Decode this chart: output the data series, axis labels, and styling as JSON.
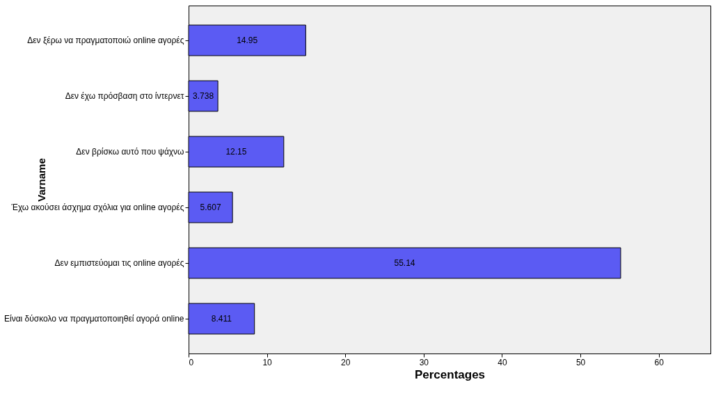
{
  "chart_data": {
    "type": "bar",
    "orientation": "horizontal",
    "xlabel": "Percentages",
    "ylabel": "Varname",
    "categories": [
      "Δεν ξέρω να πραγματοποιώ online αγορές",
      "Δεν έχω πρόσβαση στο ίντερνετ",
      "Δεν βρίσκω αυτό που ψάχνω",
      "Έχω ακούσει άσχημα σχόλια για online αγορές",
      "Δεν εμπιστεύομαι τις online αγορές",
      "Είναι δύσκολο να πραγματοποιηθεί αγορά online"
    ],
    "values": [
      14.95,
      3.738,
      12.15,
      5.607,
      55.14,
      8.411
    ],
    "color": "#5b5bf3",
    "xlim": [
      0,
      66.6
    ],
    "xticks": [
      0,
      10,
      20,
      30,
      40,
      50,
      60
    ],
    "data_labels": true,
    "grid": false
  }
}
